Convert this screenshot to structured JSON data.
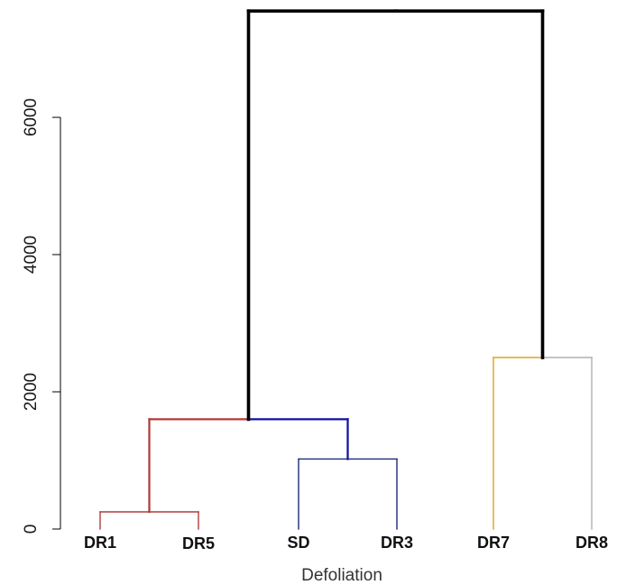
{
  "chart_data": {
    "type": "dendrogram",
    "title": "",
    "xlabel": "Defoliation",
    "ylabel": "",
    "ylim": [
      0,
      7600
    ],
    "yticks": [
      0,
      2000,
      4000,
      6000
    ],
    "ytick_labels": [
      "0",
      "2000",
      "4000",
      "6000"
    ],
    "leaves": [
      "DR1",
      "DR5",
      "SD",
      "DR3",
      "DR7",
      "DR8"
    ],
    "merges": [
      {
        "id": "m1",
        "children": [
          "DR1",
          "DR5"
        ],
        "height": 250,
        "color": "#b03a3a",
        "stroke_scale": 1
      },
      {
        "id": "m2",
        "children": [
          "SD",
          "DR3"
        ],
        "height": 1020,
        "color": "#1f2a7a",
        "stroke_scale": 1
      },
      {
        "id": "m3",
        "children": [
          "m1",
          "m2"
        ],
        "height": 1600,
        "color_left": "#b03a3a",
        "color_right": "#1010a0",
        "stroke_scale": 1.6
      },
      {
        "id": "m4",
        "children": [
          "DR7",
          "DR8"
        ],
        "height": 2500,
        "color_left": "#e0a020",
        "color_right": "#b0b0b0",
        "stroke_scale": 1
      },
      {
        "id": "m5",
        "children": [
          "m3",
          "m4"
        ],
        "height": 7550,
        "color": "#000000",
        "stroke_scale": 2.6
      }
    ],
    "grid": false,
    "legend": "none"
  }
}
